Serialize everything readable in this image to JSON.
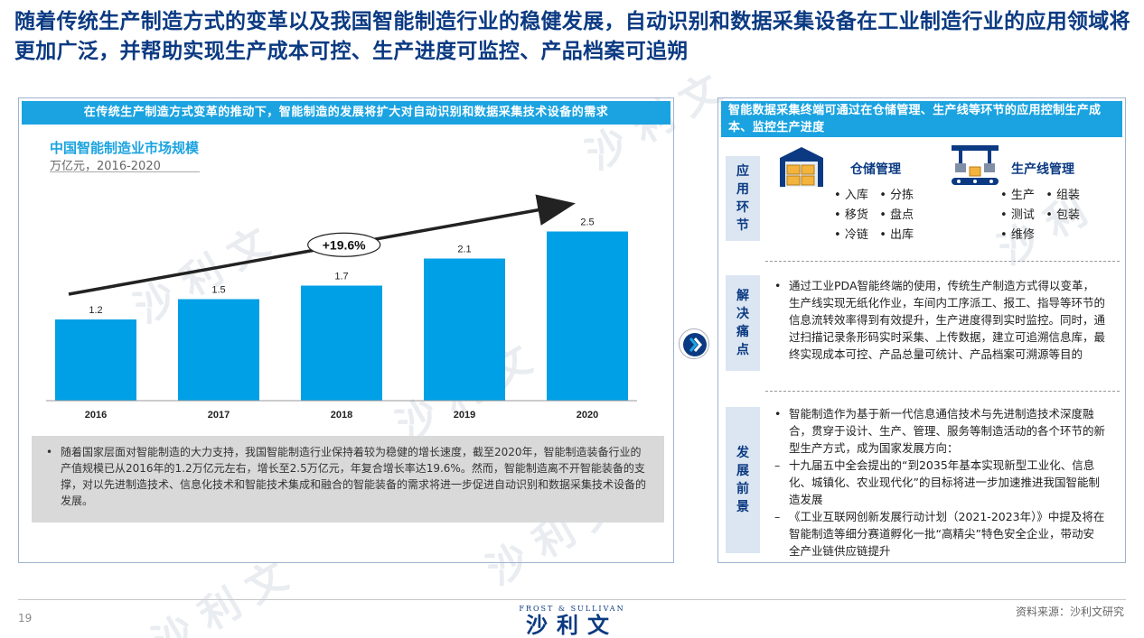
{
  "title": "随着传统生产制造方式的变革以及我国智能制造行业的稳健发展，自动识别和数据采集设备在工业制造行业的应用领域将更加广泛，并帮助实现生产成本可控、生产进度可监控、产品档案可追朔",
  "left": {
    "header": "在传统生产制造方式变革的推动下，智能制造的发展将扩大对自动识别和数据采集技术设备的需求",
    "chart_title": "中国智能制造业市场规模",
    "chart_subtitle": "万亿元，2016-2020",
    "cagr_label": "+19.6%",
    "bullet": "随着国家层面对智能制造的大力支持，我国智能制造行业保持着较为稳健的增长速度，截至2020年，智能制造装备行业的产值规模已从2016年的1.2万亿元左右，增长至2.5万亿元，年复合增长率达19.6%。然而，智能制造离不开智能装备的支撑，对以先进制造技术、信息化技术和智能技术集成和融合的智能装备的需求将进一步促进自动识别和数据采集技术设备的发展。"
  },
  "chart_data": {
    "type": "bar",
    "title": "中国智能制造业市场规模",
    "subtitle": "万亿元，2016-2020",
    "categories": [
      "2016",
      "2017",
      "2018",
      "2019",
      "2020"
    ],
    "values": [
      1.2,
      1.5,
      1.7,
      2.1,
      2.5
    ],
    "value_labels": [
      "1.2",
      "1.5",
      "1.7",
      "2.1",
      "2.5"
    ],
    "annotation": "+19.6%",
    "ylim": [
      0,
      2.8
    ],
    "bar_color": "#00a0e6",
    "grid": false
  },
  "right": {
    "header": "智能数据采集终端可通过在仓储管理、生产线等环节的应用控制生产成本、监控生产进度",
    "tabs": {
      "application": "应用环节",
      "pain": "解决痛点",
      "outlook": "发展前景"
    },
    "warehouse": {
      "title": "仓储管理",
      "icon": "warehouse-icon",
      "items": [
        "入库",
        "分拣",
        "移货",
        "盘点",
        "冷链",
        "出库"
      ]
    },
    "production": {
      "title": "生产线管理",
      "icon": "production-line-icon",
      "items": [
        "生产",
        "组装",
        "测试",
        "包装",
        "维修"
      ]
    },
    "pain_text": "通过工业PDA智能终端的使用，传统生产制造方式得以变革，生产线实现无纸化作业，车间内工序派工、报工、指导等环节的信息流转效率得到有效提升，生产进度得到实时监控。同时，通过扫描记录条形码实时采集、上传数据，建立可追溯信息库，最终实现成本可控、产品总量可统计、产品档案可溯源等目的",
    "outlook_intro": "智能制造作为基于新一代信息通信技术与先进制造技术深度融合，贯穿于设计、生产、管理、服务等制造活动的各个环节的新型生产方式，成为国家发展方向：",
    "outlook_point1": "十九届五中全会提出的“到2035年基本实现新型工业化、信息化、城镇化、农业现代化”的目标将进一步加速推进我国智能制造发展",
    "outlook_point2": "《工业互联网创新发展行动计划（2021-2023年）》中提及将在智能制造等细分赛道孵化一批“高精尖”特色安全企业，带动安全产业链供应链提升"
  },
  "footer": {
    "page": "19",
    "brand_en": "FROST & SULLIVAN",
    "brand_cn": "沙利文",
    "source": "资料来源：沙利文研究"
  },
  "colors": {
    "title_blue": "#0b3a82",
    "header_blue": "#1aa3e0",
    "bar_blue": "#00a0e6",
    "tab_bg": "#dbe6f2"
  }
}
